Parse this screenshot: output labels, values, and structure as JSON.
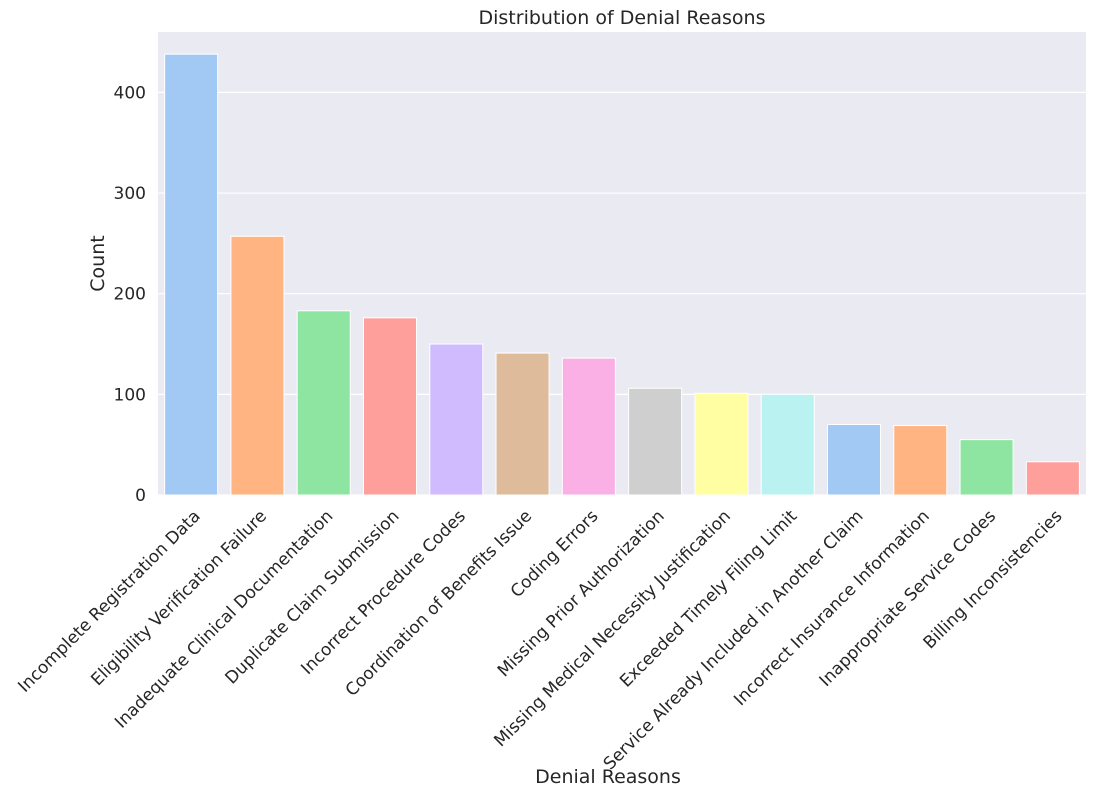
{
  "chart_data": {
    "type": "bar",
    "title": "Distribution of Denial Reasons",
    "xlabel": "Denial Reasons",
    "ylabel": "Count",
    "ylim": [
      0,
      460
    ],
    "yticks": [
      0,
      100,
      200,
      300,
      400
    ],
    "grid": true,
    "legend": "none",
    "categories": [
      "Incomplete Registration Data",
      "Eligibility Verification Failure",
      "Inadequate Clinical Documentation",
      "Duplicate Claim Submission",
      "Incorrect Procedure Codes",
      "Coordination of Benefits Issue",
      "Coding Errors",
      "Missing Prior Authorization",
      "Missing Medical Necessity Justification",
      "Exceeded Timely Filing Limit",
      "Service Already Included in Another Claim",
      "Incorrect Insurance Information",
      "Inappropriate Service Codes",
      "Billing Inconsistencies"
    ],
    "values": [
      438,
      257,
      183,
      176,
      150,
      141,
      136,
      106,
      101,
      100,
      70,
      69,
      55,
      33
    ],
    "colors": [
      "#a1c9f4",
      "#ffb482",
      "#8de5a1",
      "#ff9f9b",
      "#d0bbff",
      "#debb9b",
      "#fab0e4",
      "#cfcfcf",
      "#fffea3",
      "#b9f2f0",
      "#a1c9f4",
      "#ffb482",
      "#8de5a1",
      "#ff9f9b"
    ],
    "plot_background": "#eaeaf2",
    "grid_color": "#ffffff"
  }
}
